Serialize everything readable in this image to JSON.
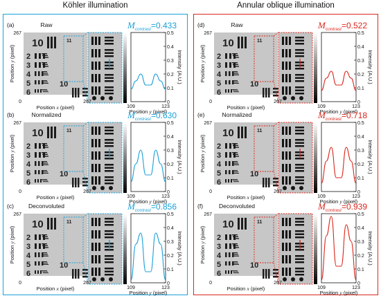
{
  "panels": [
    {
      "title": "Köhler illumination",
      "color": "#1aa0d8",
      "rows": [
        {
          "letter": "(a)",
          "label": "Raw",
          "m": "0.433",
          "curve": "low"
        },
        {
          "letter": "(b)",
          "label": "Normalized",
          "m": "0.630",
          "curve": "mid"
        },
        {
          "letter": "(c)",
          "label": "Deconvoluted",
          "m": "0.856",
          "curve": "high"
        }
      ]
    },
    {
      "title": "Annular oblique illumination",
      "color": "#d9261c",
      "rows": [
        {
          "letter": "(d)",
          "label": "Raw",
          "m": "0.522",
          "curve": "low"
        },
        {
          "letter": "(e)",
          "label": "Normalized",
          "m": "0.718",
          "curve": "mid"
        },
        {
          "letter": "(f)",
          "label": "Deconvoluted",
          "m": "0.939",
          "curve": "high"
        }
      ]
    }
  ],
  "m_symbol": "M",
  "m_subscript": "contrast",
  "m_eq": "=",
  "image_axis": {
    "y_label_pre": "Position ",
    "y_label_var": "y",
    "y_label_post": " (pixel)",
    "x_label_pre": "Position ",
    "x_label_var": "x",
    "x_label_post": " (pixel)",
    "tick_min": "0",
    "tick_max": "267"
  },
  "plot_axis": {
    "x_label_pre": "Position ",
    "x_label_var": "y",
    "x_label_post": " (pixel)",
    "y_label": "Intensity (A.U.)",
    "x_min": "109",
    "x_max": "123",
    "y_ticks": [
      "0",
      "0.1",
      "0.2",
      "0.3",
      "0.4",
      "0.5"
    ]
  },
  "chart_data": [
    {
      "type": "line",
      "panel": "(a)",
      "x": [
        109,
        111,
        113,
        115,
        117,
        119,
        121,
        123
      ],
      "y": [
        0.09,
        0.15,
        0.2,
        0.12,
        0.12,
        0.2,
        0.15,
        0.09
      ],
      "xlim": [
        109,
        123
      ],
      "ylim": [
        0,
        0.5
      ],
      "color": "#1aa0d8"
    },
    {
      "type": "line",
      "panel": "(b)",
      "x": [
        109,
        111,
        113,
        115,
        117,
        119,
        121,
        123
      ],
      "y": [
        0.07,
        0.2,
        0.3,
        0.12,
        0.12,
        0.3,
        0.2,
        0.07
      ],
      "xlim": [
        109,
        123
      ],
      "ylim": [
        0,
        0.5
      ],
      "color": "#1aa0d8"
    },
    {
      "type": "line",
      "panel": "(c)",
      "x": [
        109,
        111,
        113,
        115,
        117,
        119,
        121,
        123
      ],
      "y": [
        0.02,
        0.28,
        0.36,
        0.08,
        0.08,
        0.36,
        0.28,
        0.02
      ],
      "xlim": [
        109,
        123
      ],
      "ylim": [
        0,
        0.5
      ],
      "color": "#1aa0d8"
    },
    {
      "type": "line",
      "panel": "(d)",
      "x": [
        109,
        111,
        113,
        115,
        117,
        119,
        121,
        123
      ],
      "y": [
        0.08,
        0.17,
        0.22,
        0.12,
        0.12,
        0.22,
        0.17,
        0.08
      ],
      "xlim": [
        109,
        123
      ],
      "ylim": [
        0,
        0.5
      ],
      "color": "#d9261c"
    },
    {
      "type": "line",
      "panel": "(e)",
      "x": [
        109,
        111,
        113,
        115,
        117,
        119,
        121,
        123
      ],
      "y": [
        0.06,
        0.22,
        0.32,
        0.1,
        0.1,
        0.32,
        0.22,
        0.06
      ],
      "xlim": [
        109,
        123
      ],
      "ylim": [
        0,
        0.5
      ],
      "color": "#d9261c"
    },
    {
      "type": "line",
      "panel": "(f)",
      "x": [
        109,
        111,
        113,
        115,
        117,
        119,
        121,
        123
      ],
      "y": [
        0.02,
        0.34,
        0.48,
        0.12,
        0.12,
        0.42,
        0.3,
        0.02
      ],
      "xlim": [
        109,
        123
      ],
      "ylim": [
        0,
        0.5
      ],
      "color": "#d9261c"
    }
  ]
}
